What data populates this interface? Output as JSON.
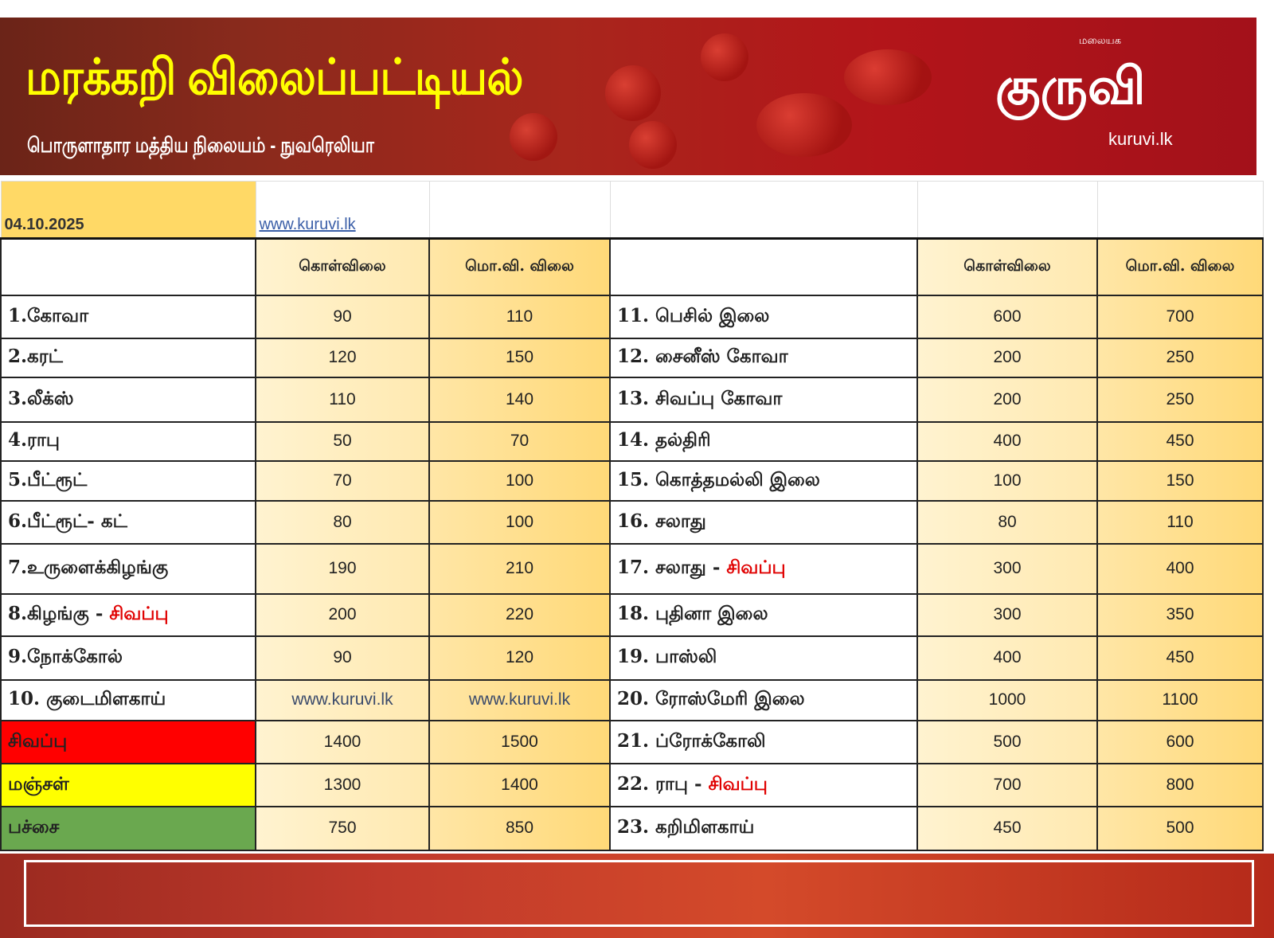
{
  "header": {
    "title": "மரக்கறி விலைப்பட்டியல்",
    "subtitle": "பொருளாதார மத்திய நிலையம் - நுவரெலியா"
  },
  "logo": {
    "small": "மலையக",
    "main": "குருவி",
    "site": "kuruvi.lk"
  },
  "table": {
    "date": "04.10.2025",
    "link": "www.kuruvi.lk",
    "col_wholesale": "கொள்விலை",
    "col_retail": "மொ.வி. விலை",
    "rows": [
      {
        "l": {
          "name": "1.கோவா",
          "red": "",
          "w": "90",
          "r": "110"
        },
        "r": {
          "name": "11. பெசில் இலை",
          "red": "",
          "w": "600",
          "r": "700"
        }
      },
      {
        "l": {
          "name": "2.கரட்",
          "red": "",
          "w": "120",
          "r": "150"
        },
        "r": {
          "name": "12. சைனீஸ் கோவா",
          "red": "",
          "w": "200",
          "r": "250"
        }
      },
      {
        "l": {
          "name": "3.லீக்ஸ்",
          "red": "",
          "w": "110",
          "r": "140"
        },
        "r": {
          "name": "13. சிவப்பு கோவா",
          "red": "",
          "w": "200",
          "r": "250"
        }
      },
      {
        "l": {
          "name": "4.ராபு",
          "red": "",
          "w": "50",
          "r": "70"
        },
        "r": {
          "name": "14. தல்திரி",
          "red": "",
          "w": "400",
          "r": "450"
        }
      },
      {
        "l": {
          "name": "5.பீட்ரூட்",
          "red": "",
          "w": "70",
          "r": "100"
        },
        "r": {
          "name": "15. கொத்தமல்லி இலை",
          "red": "",
          "w": "100",
          "r": "150"
        }
      },
      {
        "l": {
          "name": "6.பீட்ரூட்- கட்",
          "red": "",
          "w": "80",
          "r": "100"
        },
        "r": {
          "name": "16. சலாது",
          "red": "",
          "w": "80",
          "r": "110"
        }
      },
      {
        "l": {
          "name": "7.உருளைக்கிழங்கு",
          "red": "",
          "w": "190",
          "r": "210"
        },
        "r": {
          "name": "17. சலாது - ",
          "red": "சிவப்பு",
          "w": "300",
          "r": "400"
        }
      },
      {
        "l": {
          "name": "8.கிழங்கு - ",
          "red": "சிவப்பு",
          "w": "200",
          "r": "220"
        },
        "r": {
          "name": "18. புதினா இலை",
          "red": "",
          "w": "300",
          "r": "350"
        }
      },
      {
        "l": {
          "name": "9.நோக்கோல்",
          "red": "",
          "w": "90",
          "r": "120"
        },
        "r": {
          "name": "19. பாஸ்லி",
          "red": "",
          "w": "400",
          "r": "450"
        }
      },
      {
        "l": {
          "name": "10. குடைமிளகாய்",
          "red": "",
          "w": "www.kuruvi.lk",
          "r": "www.kuruvi.lk"
        },
        "r": {
          "name": "20. ரோஸ்மேரி இலை",
          "red": "",
          "w": "1000",
          "r": "1100"
        }
      },
      {
        "l": {
          "name": "சிவப்பு",
          "red": "",
          "w": "1400",
          "r": "1500"
        },
        "r": {
          "name": "21. ப்ரோக்கோலி",
          "red": "",
          "w": "500",
          "r": "600"
        }
      },
      {
        "l": {
          "name": "மஞ்சள்",
          "red": "",
          "w": "1300",
          "r": "1400"
        },
        "r": {
          "name": "22. ராபு - ",
          "red": "சிவப்பு",
          "w": "700",
          "r": "800"
        }
      },
      {
        "l": {
          "name": "பச்சை",
          "red": "",
          "w": "750",
          "r": "850"
        },
        "r": {
          "name": "23. கறிமிளகாய்",
          "red": "",
          "w": "450",
          "r": "500"
        }
      }
    ]
  },
  "colors": {
    "banner": "#a8261c",
    "title": "#ffff00",
    "accent_red": "#e00000",
    "capsicum_red": "#ff0000",
    "capsicum_yellow": "#ffff00",
    "capsicum_green": "#6aa84f",
    "price_cell": "#ffd966"
  }
}
